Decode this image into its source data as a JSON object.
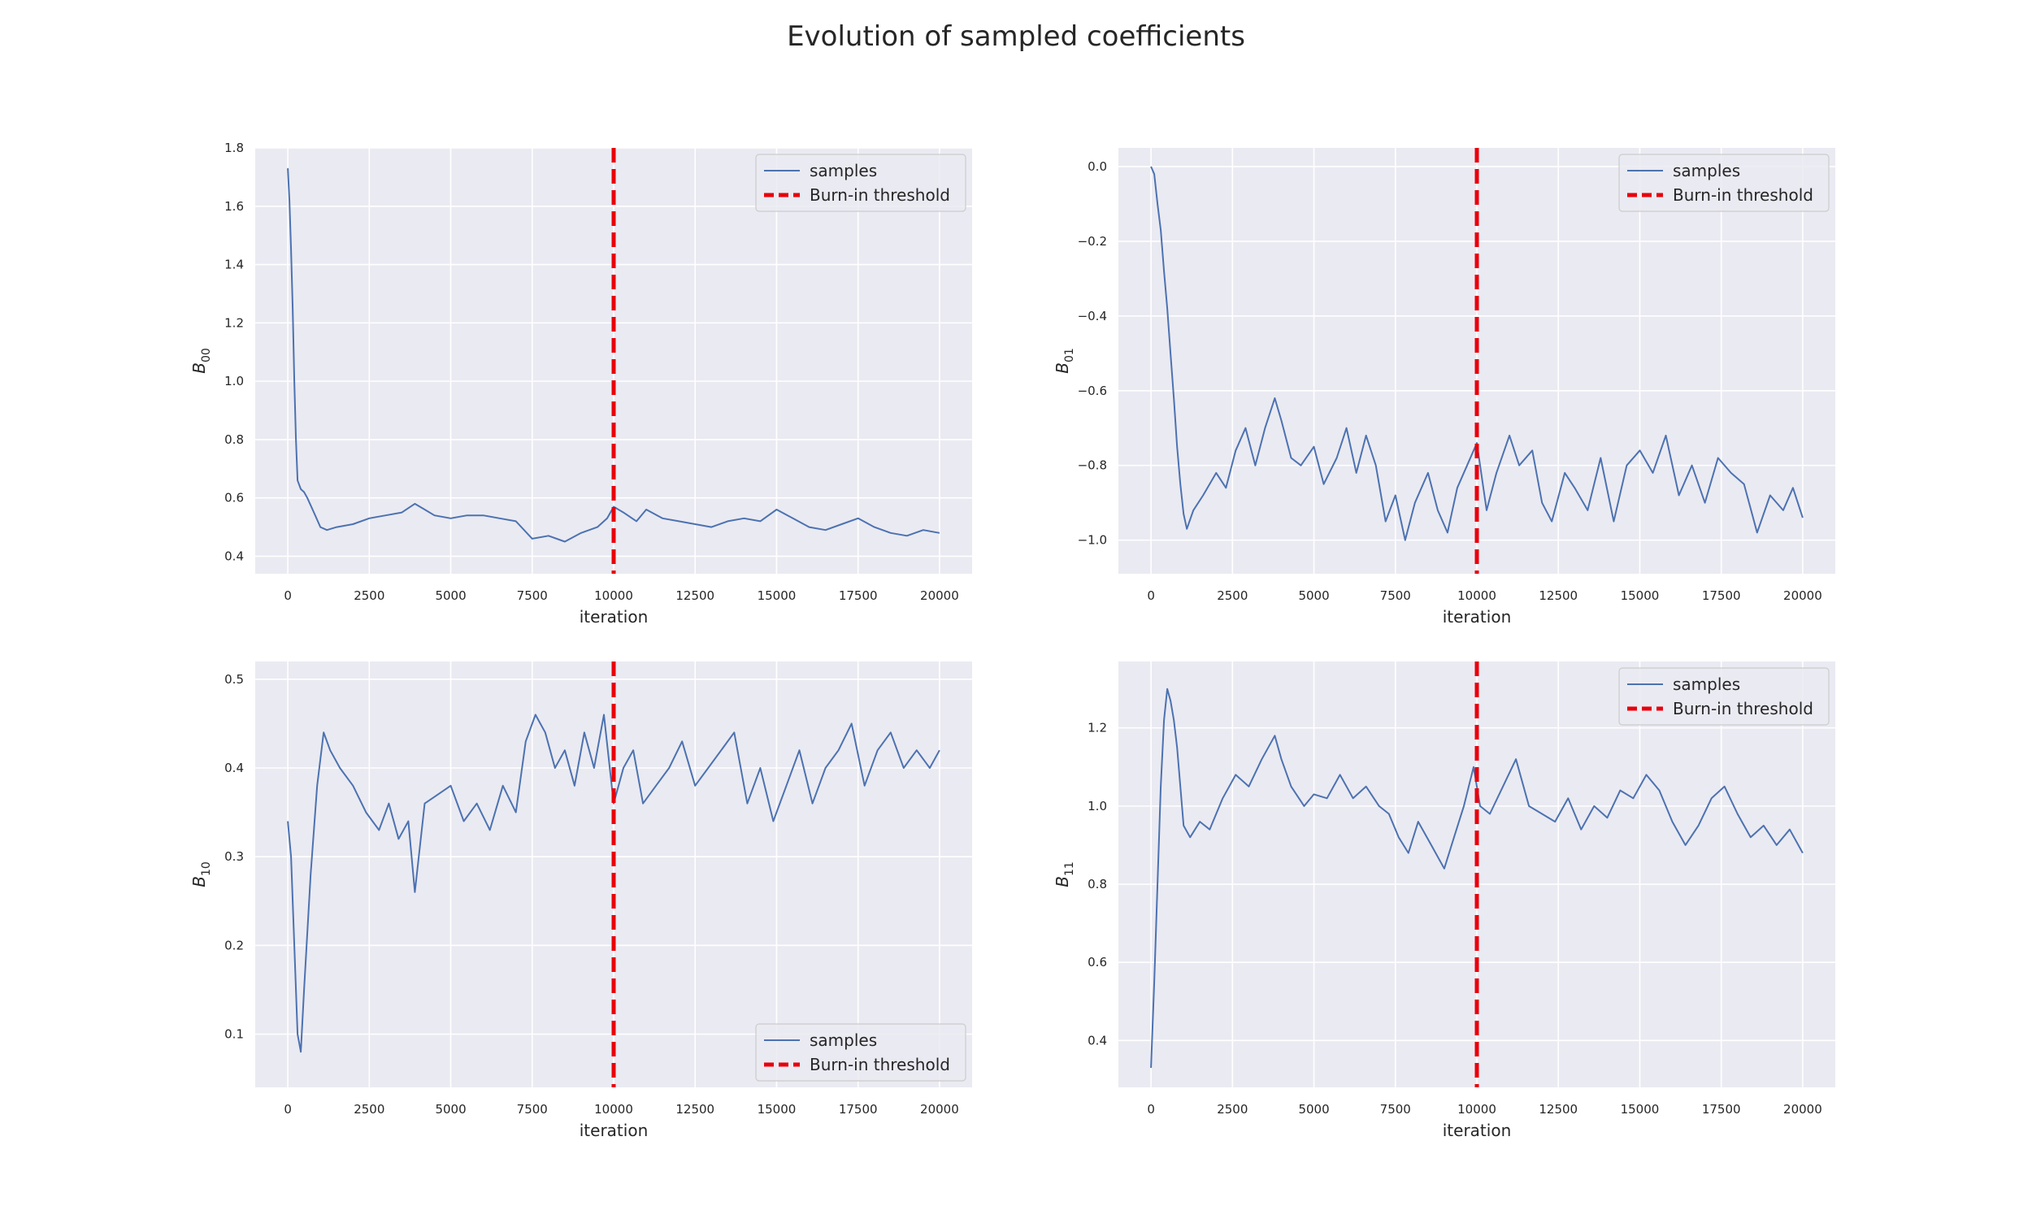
{
  "figure": {
    "title": "Evolution of sampled coefficients"
  },
  "chart_data": [
    {
      "type": "line",
      "panel": "top-left",
      "ylabel": "B",
      "ylabel_sub": "00",
      "xlabel": "iteration",
      "xlim": [
        -1000,
        21000
      ],
      "ylim": [
        0.34,
        1.8
      ],
      "xticks": [
        0,
        2500,
        5000,
        7500,
        10000,
        12500,
        15000,
        17500,
        20000
      ],
      "yticks": [
        0.4,
        0.6,
        0.8,
        1.0,
        1.2,
        1.4,
        1.6,
        1.8
      ],
      "ytick_decimals": 1,
      "grid": true,
      "legend_loc": "upper right",
      "series": [
        {
          "name": "samples",
          "color": "#4c72b0",
          "x": [
            0,
            50,
            100,
            150,
            200,
            250,
            300,
            400,
            500,
            600,
            800,
            1000,
            1200,
            1500,
            2000,
            2500,
            3000,
            3500,
            3900,
            4200,
            4500,
            5000,
            5500,
            6000,
            6500,
            7000,
            7500,
            8000,
            8500,
            9000,
            9500,
            9800,
            10000,
            10300,
            10700,
            11000,
            11500,
            12000,
            12500,
            13000,
            13500,
            14000,
            14500,
            15000,
            15500,
            16000,
            16500,
            17000,
            17500,
            18000,
            18500,
            19000,
            19500,
            20000
          ],
          "y": [
            1.73,
            1.62,
            1.45,
            1.25,
            1.0,
            0.8,
            0.66,
            0.63,
            0.62,
            0.6,
            0.55,
            0.5,
            0.49,
            0.5,
            0.51,
            0.53,
            0.54,
            0.55,
            0.58,
            0.56,
            0.54,
            0.53,
            0.54,
            0.54,
            0.53,
            0.52,
            0.46,
            0.47,
            0.45,
            0.48,
            0.5,
            0.53,
            0.57,
            0.55,
            0.52,
            0.56,
            0.53,
            0.52,
            0.51,
            0.5,
            0.52,
            0.53,
            0.52,
            0.56,
            0.53,
            0.5,
            0.49,
            0.51,
            0.53,
            0.5,
            0.48,
            0.47,
            0.49,
            0.48
          ]
        }
      ],
      "threshold": {
        "name": "Burn-in threshold",
        "x": 10000,
        "color": "#e8000b"
      }
    },
    {
      "type": "line",
      "panel": "top-right",
      "ylabel": "B",
      "ylabel_sub": "01",
      "xlabel": "iteration",
      "xlim": [
        -1000,
        21000
      ],
      "ylim": [
        -1.09,
        0.05
      ],
      "xticks": [
        0,
        2500,
        5000,
        7500,
        10000,
        12500,
        15000,
        17500,
        20000
      ],
      "yticks": [
        -1.0,
        -0.8,
        -0.6,
        -0.4,
        -0.2,
        0.0
      ],
      "ytick_decimals": 1,
      "grid": true,
      "legend_loc": "upper right",
      "series": [
        {
          "name": "samples",
          "color": "#4c72b0",
          "x": [
            0,
            100,
            200,
            300,
            400,
            500,
            600,
            700,
            800,
            900,
            1000,
            1100,
            1300,
            1600,
            2000,
            2300,
            2600,
            2900,
            3200,
            3500,
            3800,
            4000,
            4300,
            4600,
            5000,
            5300,
            5700,
            6000,
            6300,
            6600,
            6900,
            7200,
            7500,
            7800,
            8100,
            8500,
            8800,
            9100,
            9400,
            9700,
            10000,
            10300,
            10600,
            11000,
            11300,
            11700,
            12000,
            12300,
            12700,
            13000,
            13400,
            13800,
            14200,
            14600,
            15000,
            15400,
            15800,
            16200,
            16600,
            17000,
            17400,
            17800,
            18200,
            18600,
            19000,
            19400,
            19700,
            20000
          ],
          "y": [
            0.0,
            -0.02,
            -0.1,
            -0.17,
            -0.28,
            -0.38,
            -0.5,
            -0.62,
            -0.75,
            -0.85,
            -0.93,
            -0.97,
            -0.92,
            -0.88,
            -0.82,
            -0.86,
            -0.76,
            -0.7,
            -0.8,
            -0.7,
            -0.62,
            -0.68,
            -0.78,
            -0.8,
            -0.75,
            -0.85,
            -0.78,
            -0.7,
            -0.82,
            -0.72,
            -0.8,
            -0.95,
            -0.88,
            -1.0,
            -0.9,
            -0.82,
            -0.92,
            -0.98,
            -0.86,
            -0.8,
            -0.74,
            -0.92,
            -0.82,
            -0.72,
            -0.8,
            -0.76,
            -0.9,
            -0.95,
            -0.82,
            -0.86,
            -0.92,
            -0.78,
            -0.95,
            -0.8,
            -0.76,
            -0.82,
            -0.72,
            -0.88,
            -0.8,
            -0.9,
            -0.78,
            -0.82,
            -0.85,
            -0.98,
            -0.88,
            -0.92,
            -0.86,
            -0.94
          ]
        }
      ],
      "threshold": {
        "name": "Burn-in threshold",
        "x": 10000,
        "color": "#e8000b"
      }
    },
    {
      "type": "line",
      "panel": "bottom-left",
      "ylabel": "B",
      "ylabel_sub": "10",
      "xlabel": "iteration",
      "xlim": [
        -1000,
        21000
      ],
      "ylim": [
        0.04,
        0.52
      ],
      "xticks": [
        0,
        2500,
        5000,
        7500,
        10000,
        12500,
        15000,
        17500,
        20000
      ],
      "yticks": [
        0.1,
        0.2,
        0.3,
        0.4,
        0.5
      ],
      "ytick_decimals": 1,
      "grid": true,
      "legend_loc": "lower right",
      "series": [
        {
          "name": "samples",
          "color": "#4c72b0",
          "x": [
            0,
            100,
            200,
            300,
            400,
            500,
            700,
            900,
            1100,
            1300,
            1600,
            2000,
            2400,
            2800,
            3100,
            3400,
            3700,
            3900,
            4200,
            4600,
            5000,
            5400,
            5800,
            6200,
            6600,
            7000,
            7300,
            7600,
            7900,
            8200,
            8500,
            8800,
            9100,
            9400,
            9700,
            10000,
            10300,
            10600,
            10900,
            11300,
            11700,
            12100,
            12500,
            12900,
            13300,
            13700,
            14100,
            14500,
            14900,
            15300,
            15700,
            16100,
            16500,
            16900,
            17300,
            17700,
            18100,
            18500,
            18900,
            19300,
            19700,
            20000
          ],
          "y": [
            0.34,
            0.3,
            0.2,
            0.1,
            0.08,
            0.15,
            0.28,
            0.38,
            0.44,
            0.42,
            0.4,
            0.38,
            0.35,
            0.33,
            0.36,
            0.32,
            0.34,
            0.26,
            0.36,
            0.37,
            0.38,
            0.34,
            0.36,
            0.33,
            0.38,
            0.35,
            0.43,
            0.46,
            0.44,
            0.4,
            0.42,
            0.38,
            0.44,
            0.4,
            0.46,
            0.36,
            0.4,
            0.42,
            0.36,
            0.38,
            0.4,
            0.43,
            0.38,
            0.4,
            0.42,
            0.44,
            0.36,
            0.4,
            0.34,
            0.38,
            0.42,
            0.36,
            0.4,
            0.42,
            0.45,
            0.38,
            0.42,
            0.44,
            0.4,
            0.42,
            0.4,
            0.42
          ]
        }
      ],
      "threshold": {
        "name": "Burn-in threshold",
        "x": 10000,
        "color": "#e8000b"
      }
    },
    {
      "type": "line",
      "panel": "bottom-right",
      "ylabel": "B",
      "ylabel_sub": "11",
      "xlabel": "iteration",
      "xlim": [
        -1000,
        21000
      ],
      "ylim": [
        0.28,
        1.37
      ],
      "xticks": [
        0,
        2500,
        5000,
        7500,
        10000,
        12500,
        15000,
        17500,
        20000
      ],
      "yticks": [
        0.4,
        0.6,
        0.8,
        1.0,
        1.2
      ],
      "ytick_decimals": 1,
      "grid": true,
      "legend_loc": "upper right",
      "series": [
        {
          "name": "samples",
          "color": "#4c72b0",
          "x": [
            0,
            100,
            200,
            300,
            400,
            500,
            600,
            700,
            800,
            900,
            1000,
            1200,
            1500,
            1800,
            2200,
            2600,
            3000,
            3400,
            3800,
            4000,
            4300,
            4700,
            5000,
            5400,
            5800,
            6200,
            6600,
            7000,
            7300,
            7600,
            7900,
            8200,
            8600,
            9000,
            9300,
            9600,
            9900,
            10100,
            10400,
            10800,
            11200,
            11600,
            12000,
            12400,
            12800,
            13200,
            13600,
            14000,
            14400,
            14800,
            15200,
            15600,
            16000,
            16400,
            16800,
            17200,
            17600,
            18000,
            18400,
            18800,
            19200,
            19600,
            20000
          ],
          "y": [
            0.33,
            0.55,
            0.8,
            1.05,
            1.22,
            1.3,
            1.27,
            1.22,
            1.15,
            1.05,
            0.95,
            0.92,
            0.96,
            0.94,
            1.02,
            1.08,
            1.05,
            1.12,
            1.18,
            1.12,
            1.05,
            1.0,
            1.03,
            1.02,
            1.08,
            1.02,
            1.05,
            1.0,
            0.98,
            0.92,
            0.88,
            0.96,
            0.9,
            0.84,
            0.92,
            1.0,
            1.1,
            1.0,
            0.98,
            1.05,
            1.12,
            1.0,
            0.98,
            0.96,
            1.02,
            0.94,
            1.0,
            0.97,
            1.04,
            1.02,
            1.08,
            1.04,
            0.96,
            0.9,
            0.95,
            1.02,
            1.05,
            0.98,
            0.92,
            0.95,
            0.9,
            0.94,
            0.88
          ]
        }
      ],
      "threshold": {
        "name": "Burn-in threshold",
        "x": 10000,
        "color": "#e8000b"
      }
    }
  ]
}
